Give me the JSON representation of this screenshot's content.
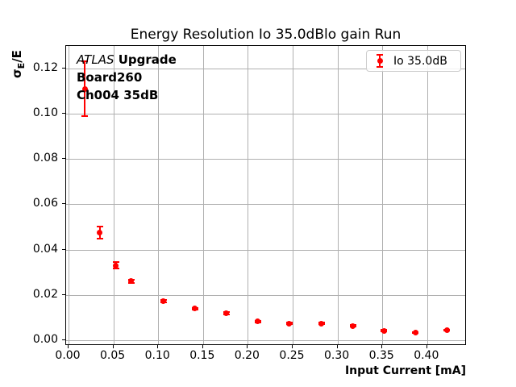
{
  "title": "Energy Resolution Io 35.0dBlo gain Run",
  "axes": {
    "xlabel": "Input Current [mA]",
    "ylabel": "σE/E",
    "ylabel_parts": {
      "base": "σ",
      "sub": "E",
      "rest": "/E"
    }
  },
  "annotation": {
    "experiment": "ATLAS",
    "experiment_suffix": " Upgrade",
    "board": "Board260",
    "channel": "Ch004 35dB"
  },
  "legend": {
    "label": "Io 35.0dB"
  },
  "colors": {
    "series": "#ff0000",
    "grid": "#b0b0b0",
    "spine": "#000000",
    "legend_border": "#cccccc"
  },
  "chart_data": {
    "type": "scatter",
    "title": "Energy Resolution Io 35.0dBlo gain Run",
    "xlabel": "Input Current [mA]",
    "ylabel": "σE/E",
    "series_name": "Io 35.0dB",
    "marker": "circle-with-error-bars",
    "color": "#ff0000",
    "grid": true,
    "legend_position": "upper right",
    "xlim": [
      -0.003,
      0.444
    ],
    "ylim": [
      -0.0025,
      0.13
    ],
    "x_ticks": [
      0.0,
      0.05,
      0.1,
      0.15,
      0.2,
      0.25,
      0.3,
      0.35,
      0.4
    ],
    "y_ticks": [
      0.0,
      0.02,
      0.04,
      0.06,
      0.08,
      0.1,
      0.12
    ],
    "x": [
      0.018,
      0.035,
      0.053,
      0.07,
      0.106,
      0.141,
      0.176,
      0.211,
      0.246,
      0.282,
      0.317,
      0.352,
      0.387,
      0.422
    ],
    "y": [
      0.111,
      0.0475,
      0.033,
      0.026,
      0.0172,
      0.0139,
      0.0119,
      0.0083,
      0.0074,
      0.0074,
      0.0064,
      0.0042,
      0.0034,
      0.0044
    ],
    "yerr": [
      0.0122,
      0.0026,
      0.0014,
      0.0008,
      0.0006,
      0.0005,
      0.0005,
      0.0004,
      0.0004,
      0.0004,
      0.0003,
      0.0003,
      0.0003,
      0.0003
    ]
  }
}
